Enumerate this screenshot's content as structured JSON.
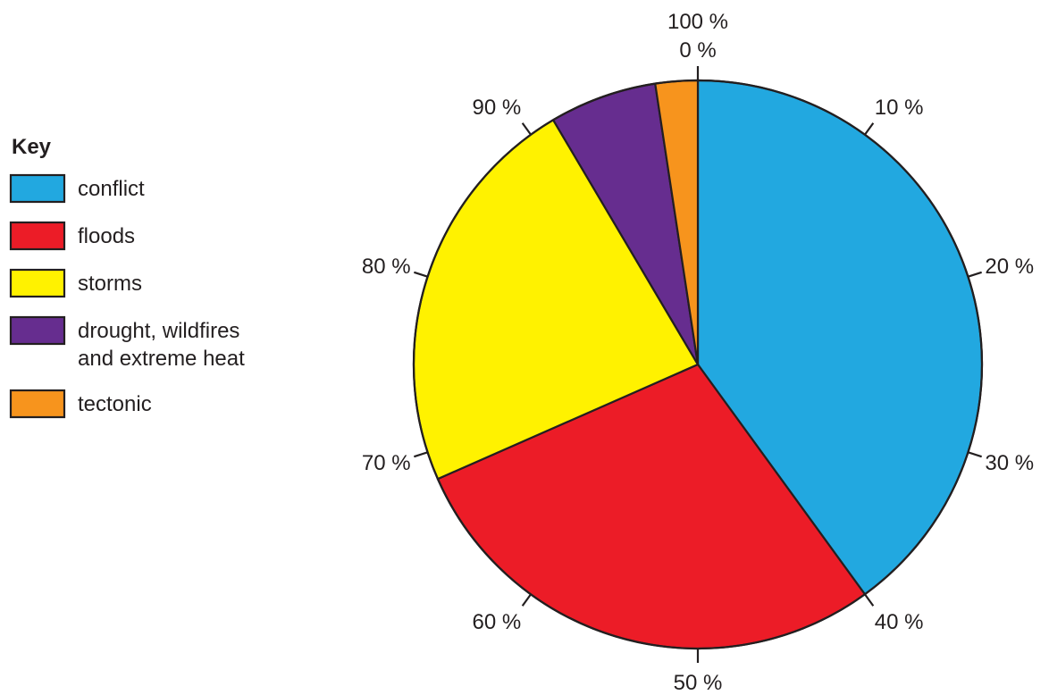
{
  "chart_data": {
    "type": "pie",
    "start": "top",
    "direction": "clockwise",
    "legend_title": "Key",
    "legend_position": "left",
    "slices": [
      {
        "label": "conflict",
        "value": 40.0,
        "color": "#22a8e0"
      },
      {
        "label": "floods",
        "value": 28.4,
        "color": "#ec1c27"
      },
      {
        "label": "storms",
        "value": 23.1,
        "color": "#fff200"
      },
      {
        "label": "drought, wildfires and extreme heat",
        "legend_lines": [
          "drought, wildfires",
          "and extreme heat"
        ],
        "value": 6.1,
        "color": "#662d8f"
      },
      {
        "label": "tectonic",
        "value": 2.4,
        "color": "#f7941d"
      }
    ],
    "percent_ticks": [
      {
        "value": 10,
        "label": "10 %"
      },
      {
        "value": 20,
        "label": "20 %"
      },
      {
        "value": 30,
        "label": "30 %"
      },
      {
        "value": 40,
        "label": "40 %"
      },
      {
        "value": 50,
        "label": "50 %"
      },
      {
        "value": 60,
        "label": "60 %"
      },
      {
        "value": 70,
        "label": "70 %"
      },
      {
        "value": 80,
        "label": "80 %"
      },
      {
        "value": 90,
        "label": "90 %"
      }
    ],
    "top_labels": [
      "100 %",
      "0 %"
    ]
  }
}
